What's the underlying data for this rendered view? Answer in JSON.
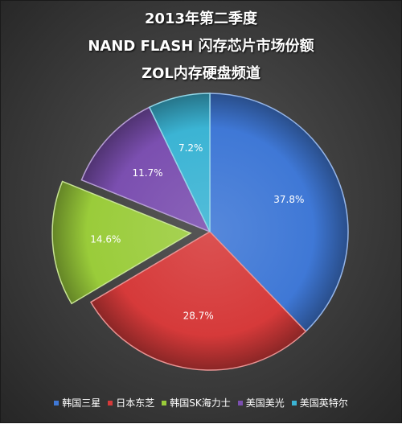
{
  "titles": [
    "2013年第二季度",
    "NAND FLASH 闪存芯片市场份额",
    "ZOL内存硬盘频道"
  ],
  "chart_data": {
    "type": "pie",
    "title": "2013年第二季度 NAND FLASH 闪存芯片市场份额",
    "subtitle": "ZOL内存硬盘频道",
    "legend_position": "bottom",
    "slices": [
      {
        "label": "韩国三星",
        "value": 37.8,
        "display": "37.8%",
        "color": "#3f78d6",
        "exploded": false
      },
      {
        "label": "日本东芝",
        "value": 28.7,
        "display": "28.7%",
        "color": "#d63a3a",
        "exploded": false
      },
      {
        "label": "韩国SK海力士",
        "value": 14.6,
        "display": "14.6%",
        "color": "#9acc3a",
        "exploded": true
      },
      {
        "label": "美国美光",
        "value": 11.7,
        "display": "11.7%",
        "color": "#7b4fb0",
        "exploded": false
      },
      {
        "label": "美国英特尔",
        "value": 7.2,
        "display": "7.2%",
        "color": "#3bb4d4",
        "exploded": false
      }
    ]
  }
}
